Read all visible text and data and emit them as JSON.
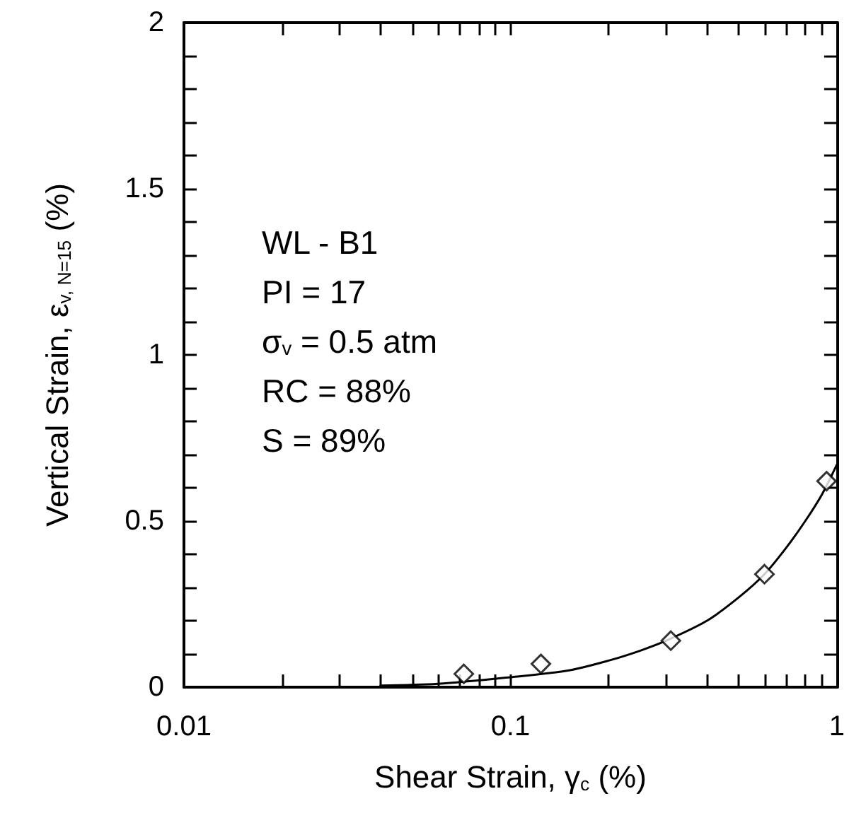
{
  "chart_data": {
    "type": "scatter",
    "xlabel": "Shear Strain, γ$_{c}$ (%)",
    "ylabel": "Vertical Strain, ε$_{v, N=15}$ (%)",
    "annotations": [
      "WL - B1",
      "PI = 17",
      "σ$_{v}$ = 0.5 atm",
      "RC = 88%",
      "S = 89%"
    ],
    "series": [
      {
        "color": "#000000",
        "marker": "diamond",
        "x": [
          0.072,
          0.124,
          0.31,
          0.6,
          0.93
        ],
        "values": [
          0.04,
          0.07,
          0.14,
          0.34,
          0.62
        ]
      },
      {
        "type": "line",
        "color": "#000000",
        "marker": "none",
        "line_style": "solid",
        "x": [
          0.04,
          0.06,
          0.1,
          0.15,
          0.2,
          0.25,
          0.3,
          0.4,
          0.5,
          0.6,
          0.7,
          0.8,
          0.9,
          1
        ],
        "values": [
          0.005,
          0.01,
          0.03,
          0.05,
          0.08,
          0.11,
          0.14,
          0.2,
          0.27,
          0.34,
          0.42,
          0.5,
          0.58,
          0.67
        ]
      }
    ],
    "log": "x",
    "grid": false,
    "xlim": [
      0.01,
      1
    ],
    "xticks": [
      0.01,
      {
        "value": 0.02,
        "label": null
      },
      {
        "value": 0.03,
        "label": null
      },
      {
        "value": 0.04,
        "label": null
      },
      {
        "value": 0.05,
        "label": null
      },
      {
        "value": 0.06,
        "label": null
      },
      {
        "value": 0.07,
        "label": null
      },
      {
        "value": 0.08,
        "label": null
      },
      {
        "value": 0.09,
        "label": null
      },
      0.1,
      {
        "value": 0.2,
        "label": null
      },
      {
        "value": 0.3,
        "label": null
      },
      {
        "value": 0.4,
        "label": null
      },
      {
        "value": 0.5,
        "label": null
      },
      {
        "value": 0.6,
        "label": null
      },
      {
        "value": 0.7,
        "label": null
      },
      {
        "value": 0.8,
        "label": null
      },
      {
        "value": 0.9,
        "label": null
      },
      1
    ],
    "ylim": [
      0,
      2
    ],
    "yticks": [
      0,
      {
        "value": 0.1,
        "label": null
      },
      {
        "value": 0.2,
        "label": null
      },
      {
        "value": 0.3,
        "label": null
      },
      {
        "value": 0.4,
        "label": null
      },
      0.5,
      {
        "value": 0.6,
        "label": null
      },
      {
        "value": 0.7,
        "label": null
      },
      {
        "value": 0.8,
        "label": null
      },
      {
        "value": 0.9,
        "label": null
      },
      1,
      {
        "value": 1.1,
        "label": null
      },
      {
        "value": 1.2,
        "label": null
      },
      {
        "value": 1.3,
        "label": null
      },
      {
        "value": 1.4,
        "label": null
      },
      1.5,
      {
        "value": 1.6,
        "label": null
      },
      {
        "value": 1.7,
        "label": null
      },
      {
        "value": 1.8,
        "label": null
      },
      {
        "value": 1.9,
        "label": null
      },
      2
    ]
  }
}
